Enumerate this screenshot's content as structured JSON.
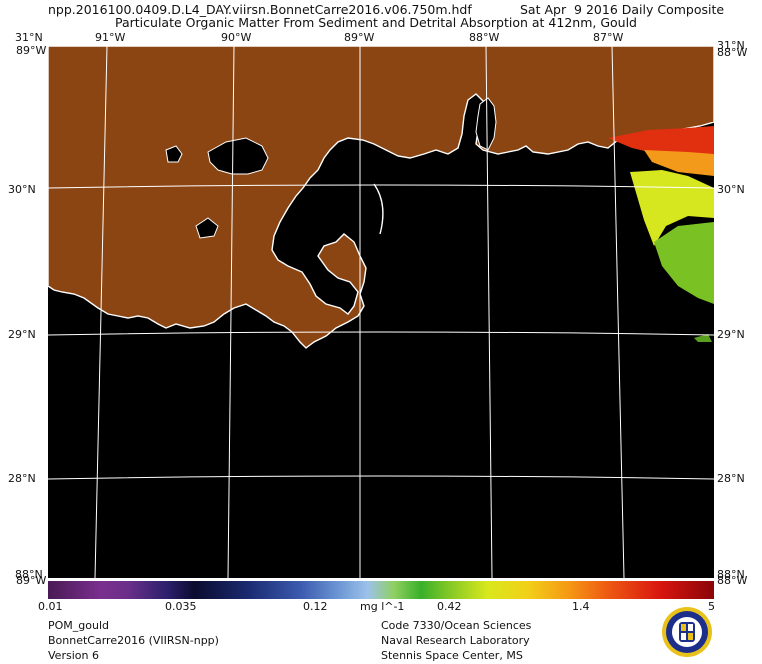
{
  "header": {
    "filename": "npp.2016100.0409.D.L4_DAY.viirsn.BonnetCarre2016.v06.750m.hdf",
    "date": "Sat Apr  9 2016 Daily Composite",
    "product_title": "Particulate Organic Matter From Sediment and Detrital Absorption at 412nm, Gould"
  },
  "map": {
    "lon_labels": [
      "91°W",
      "90°W",
      "89°W",
      "88°W",
      "87°W"
    ],
    "lat_labels": [
      "30°N",
      "29°N",
      "28°N"
    ],
    "corner_labels": {
      "top_left_lat": "31°N",
      "top_right_lat": "31°N",
      "top_left_lon": "89°W",
      "top_right_lon": "88°W",
      "bottom_left_lat": "88°N",
      "bottom_right_lat": "88°N",
      "bottom_left_lon": "89°W",
      "bottom_right_lon": "88°W"
    },
    "colors": {
      "land": "#8B4513",
      "water": "#000000",
      "coast": "#ffffff",
      "grid": "#ffffff"
    }
  },
  "colorbar": {
    "tick_labels": [
      "0.01",
      "0.035",
      "0.12",
      "0.42",
      "1.4",
      "5"
    ],
    "units": "mg l^-1",
    "scale": "log",
    "range": [
      0.01,
      5
    ]
  },
  "footer": {
    "left": [
      "POM_gould",
      "BonnetCarre2016 (VIIRSN-npp)",
      "Version 6"
    ],
    "right": [
      "Code 7330/Ocean Sciences",
      "Naval Research Laboratory",
      "Stennis Space Center, MS"
    ]
  },
  "seal": {
    "icon": "navy-research-lab-seal-icon"
  }
}
